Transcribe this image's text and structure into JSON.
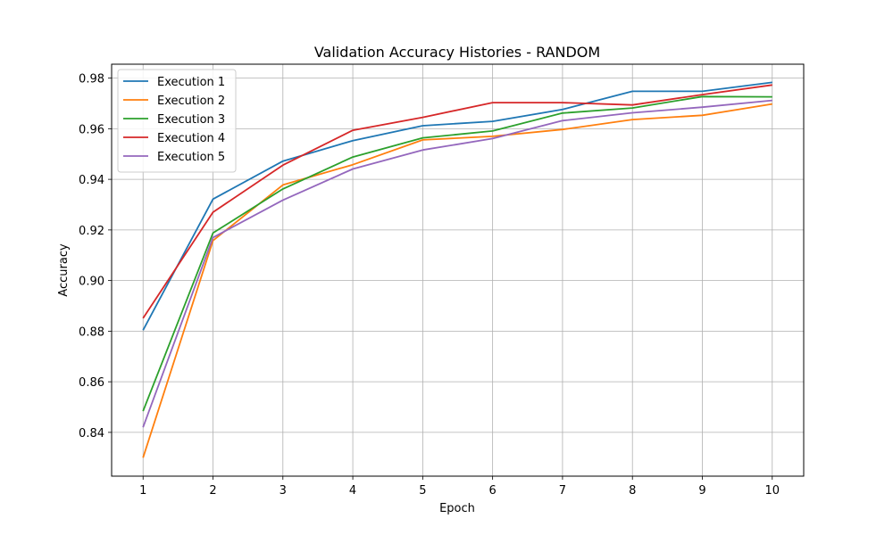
{
  "chart_data": {
    "type": "line",
    "title": "Validation Accuracy Histories - RANDOM",
    "xlabel": "Epoch",
    "ylabel": "Accuracy",
    "x": [
      1,
      2,
      3,
      4,
      5,
      6,
      7,
      8,
      9,
      10
    ],
    "xticks": [
      "1",
      "2",
      "3",
      "4",
      "5",
      "6",
      "7",
      "8",
      "9",
      "10"
    ],
    "xlim": [
      0.55,
      10.45
    ],
    "ylim": [
      0.8227,
      0.9855
    ],
    "yticks": [
      "0.84",
      "0.86",
      "0.88",
      "0.90",
      "0.92",
      "0.94",
      "0.96",
      "0.98"
    ],
    "ytick_values": [
      0.84,
      0.86,
      0.88,
      0.9,
      0.92,
      0.94,
      0.96,
      0.98
    ],
    "grid": true,
    "legend_position": "top-left",
    "series": [
      {
        "name": "Execution 1",
        "color": "#1f77b4",
        "values": [
          0.8804,
          0.9322,
          0.9472,
          0.9553,
          0.9612,
          0.9629,
          0.9676,
          0.9748,
          0.9748,
          0.9783
        ]
      },
      {
        "name": "Execution 2",
        "color": "#ff7f0e",
        "values": [
          0.83,
          0.9158,
          0.9378,
          0.9458,
          0.9556,
          0.957,
          0.9597,
          0.9636,
          0.9653,
          0.9698
        ]
      },
      {
        "name": "Execution 3",
        "color": "#2ca02c",
        "values": [
          0.8484,
          0.9188,
          0.9362,
          0.9488,
          0.9564,
          0.9591,
          0.9662,
          0.9682,
          0.9727,
          0.9726
        ]
      },
      {
        "name": "Execution 4",
        "color": "#d62728",
        "values": [
          0.8851,
          0.927,
          0.9456,
          0.9594,
          0.9645,
          0.9703,
          0.9703,
          0.9694,
          0.9735,
          0.9773
        ]
      },
      {
        "name": "Execution 5",
        "color": "#9467bd",
        "values": [
          0.842,
          0.917,
          0.9318,
          0.9441,
          0.9516,
          0.9561,
          0.9632,
          0.9663,
          0.9685,
          0.9712
        ]
      }
    ]
  }
}
